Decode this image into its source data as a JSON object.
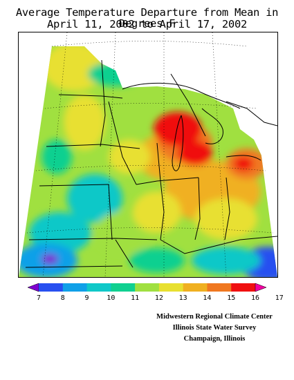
{
  "title_line1": "Average Temperature Departure from Mean in Degrees F",
  "title_line2": "April 11, 2002 to April 17, 2002",
  "legend": {
    "ticks": [
      "7",
      "8",
      "9",
      "10",
      "11",
      "12",
      "13",
      "14",
      "15",
      "16",
      "17"
    ],
    "colors": [
      "#7f00d0",
      "#2850f0",
      "#10a0e8",
      "#10c8c8",
      "#10d090",
      "#a0e040",
      "#e8e030",
      "#f0b020",
      "#f07820",
      "#f01010",
      "#f000a0"
    ]
  },
  "credits": {
    "line1": "Midwestern Regional Climate Center",
    "line2": "Illinois State Water Survey",
    "line3": "Champaign, Illinois"
  }
}
